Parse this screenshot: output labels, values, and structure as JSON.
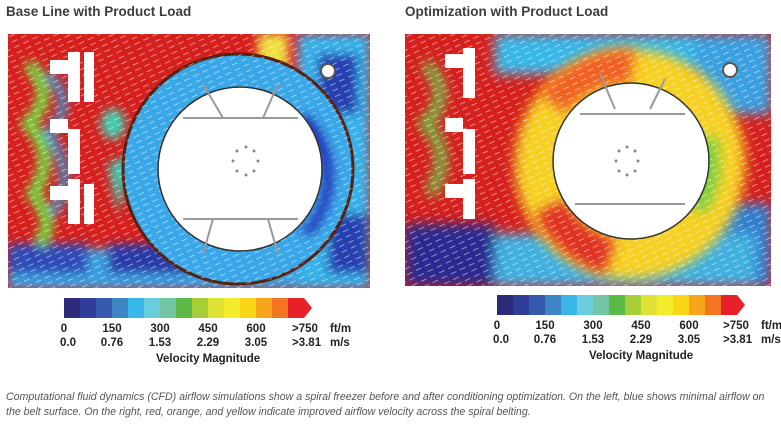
{
  "figures": [
    {
      "title": "Base Line with Product Load",
      "belt_color": "blue (low airflow)"
    },
    {
      "title": "Optimization with Product Load",
      "belt_color": "red/orange/yellow (improved airflow)"
    }
  ],
  "legend": {
    "colors": [
      "#2e2a7a",
      "#2f3e99",
      "#3459ad",
      "#3e85c6",
      "#39b7e8",
      "#6ccddc",
      "#72c6a4",
      "#5cb946",
      "#a6cf3a",
      "#dfe235",
      "#f3ec2a",
      "#fbd616",
      "#f8a51e",
      "#f37421",
      "#e8202a"
    ],
    "ticks_ftm": [
      "0",
      "150",
      "300",
      "450",
      "600",
      ">750"
    ],
    "unit_ftm": "ft/m",
    "ticks_ms": [
      "0.0",
      "0.76",
      "1.53",
      "2.29",
      "3.05",
      ">3.81"
    ],
    "unit_ms": "m/s",
    "title": "Velocity Magnitude"
  },
  "caption": "Computational fluid dynamics (CFD) airflow simulations show a spiral freezer before and after conditioning optimization. On the left, blue shows minimal airflow on the belt surface. On the right, red, orange, and yellow indicate improved airflow velocity across the spiral belting."
}
